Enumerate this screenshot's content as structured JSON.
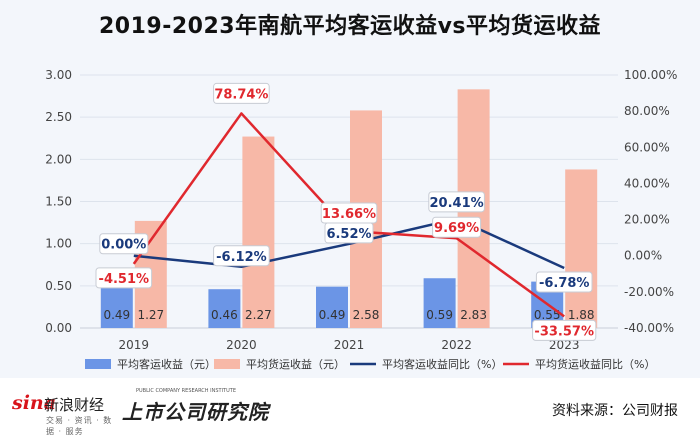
{
  "title": "2019-2023年南航平均客运收益vs平均货运收益",
  "chart_data": {
    "type": "bar+line",
    "title": "2019-2023年南航平均客运收益vs平均货运收益",
    "categories": [
      "2019",
      "2020",
      "2021",
      "2022",
      "2023"
    ],
    "left_axis": {
      "range": [
        0,
        3.0
      ],
      "ticks": [
        "0.00",
        "0.50",
        "1.00",
        "1.50",
        "2.00",
        "2.50",
        "3.00"
      ]
    },
    "right_axis": {
      "range": [
        -40,
        100
      ],
      "ticks": [
        "-40.00%",
        "-20.00%",
        "0.00%",
        "20.00%",
        "40.00%",
        "60.00%",
        "80.00%",
        "100.00%"
      ]
    },
    "bars": [
      {
        "name": "平均客运收益（元）",
        "color": "#6b95e6",
        "values": [
          0.49,
          0.46,
          0.49,
          0.59,
          0.55
        ],
        "labels": [
          "0.49",
          "0.46",
          "0.49",
          "0.59",
          "0.55"
        ]
      },
      {
        "name": "平均货运收益（元）",
        "color": "#f7b8a7",
        "values": [
          1.27,
          2.27,
          2.58,
          2.83,
          1.88
        ],
        "labels": [
          "1.27",
          "2.27",
          "2.58",
          "2.83",
          "1.88"
        ]
      }
    ],
    "lines": [
      {
        "name": "平均客运收益同比（%）",
        "color": "#1a3a7c",
        "values": [
          0.0,
          -6.12,
          6.52,
          20.41,
          -6.78
        ],
        "labels": [
          "0.00%",
          "-6.12%",
          "6.52%",
          "20.41%",
          "-6.78%"
        ]
      },
      {
        "name": "平均货运收益同比（%）",
        "color": "#e0282e",
        "values": [
          -4.51,
          78.74,
          13.66,
          9.69,
          -33.57
        ],
        "labels": [
          "-4.51%",
          "78.74%",
          "13.66%",
          "9.69%",
          "-33.57%"
        ]
      }
    ],
    "legend_position": "bottom"
  },
  "footer": {
    "sina_word": "sina",
    "sina_cn": "新浪财经",
    "sina_sub": "交易 · 资讯 · 数据 · 服务",
    "institute_small": "PUBLIC COMPANY RESEARCH INSTITUTE",
    "institute_main": "上市公司研究院",
    "source": "资料来源：公司财报"
  }
}
